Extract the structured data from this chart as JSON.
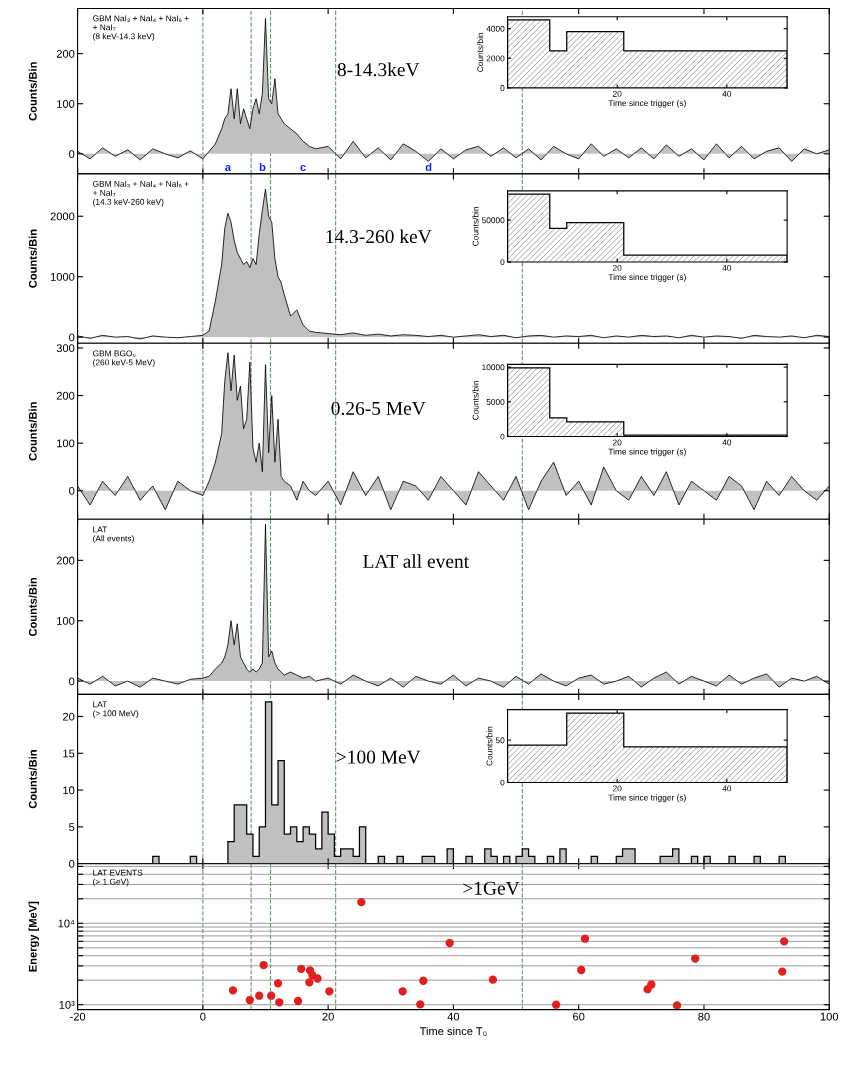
{
  "chart_data": [
    {
      "type": "area",
      "ylabel": "Counts/Bin",
      "annotations": [
        "GBM NaI₃ + NaI₄ + NaI₆ +\n+ NaI₇\n(8 keV-14.3 keV)",
        "8-14.3keV",
        "a",
        "b",
        "c",
        "d"
      ],
      "x": [
        -20,
        -18,
        -16,
        -14,
        -12,
        -10,
        -8,
        -6,
        -4,
        -2,
        0,
        1,
        2,
        3,
        3.5,
        4,
        4.5,
        5,
        5.5,
        6,
        6.5,
        7,
        7.5,
        8,
        8.5,
        9,
        9.5,
        10,
        10.5,
        11,
        11.5,
        12,
        12.5,
        13,
        14,
        15,
        16,
        17,
        18,
        20,
        22,
        24,
        26,
        28,
        30,
        32,
        34,
        36,
        38,
        40,
        42,
        44,
        46,
        48,
        50,
        52,
        54,
        56,
        58,
        60,
        62,
        64,
        66,
        68,
        70,
        72,
        74,
        76,
        78,
        80,
        82,
        84,
        86,
        88,
        90,
        92,
        94,
        96,
        98,
        100
      ],
      "series": [
        {
          "color": "#c0c0c0",
          "values": [
            5,
            -10,
            12,
            -5,
            8,
            -12,
            10,
            0,
            -8,
            6,
            -10,
            5,
            20,
            50,
            70,
            80,
            130,
            70,
            130,
            60,
            90,
            70,
            50,
            90,
            110,
            80,
            120,
            270,
            110,
            100,
            150,
            80,
            70,
            60,
            50,
            40,
            25,
            15,
            10,
            15,
            -10,
            25,
            -8,
            12,
            -12,
            20,
            5,
            -15,
            10,
            -10,
            8,
            15,
            -5,
            12,
            -8,
            10,
            -12,
            15,
            0,
            -10,
            20,
            -5,
            10,
            -8,
            12,
            -10,
            18,
            -5,
            10,
            -12,
            20,
            -8,
            15,
            -10,
            5,
            12,
            -15,
            10,
            0,
            8
          ]
        }
      ],
      "xlim": [
        -20,
        100
      ],
      "xticks": [
        -20,
        0,
        20,
        40,
        60,
        80,
        100
      ],
      "ylim": [
        -40,
        290
      ],
      "yticks": [
        0,
        100,
        200
      ],
      "tick_labels": "y",
      "ref_lines": [
        {
          "axis": "x",
          "value": 0,
          "color": "#5f9a5f",
          "line_style": "dashed"
        },
        {
          "axis": "x",
          "value": 7.7,
          "color": "#5f9a5f",
          "line_style": "dashed"
        },
        {
          "axis": "x",
          "value": 10.8,
          "color": "#5f9a5f",
          "line_style": "dashed"
        },
        {
          "axis": "x",
          "value": 21.2,
          "color": "#5f9a5f",
          "line_style": "dashed"
        },
        {
          "axis": "x",
          "value": 51,
          "color": "#5f9a5f",
          "line_style": "dashed"
        }
      ]
    },
    {
      "type": "histogram",
      "xlabel": "Time since trigger (s)",
      "ylabel": "Counts/bin",
      "bins": [
        0,
        7.7,
        10.8,
        21.2,
        51
      ],
      "values": [
        4600,
        2500,
        3800,
        2500
      ],
      "color": "#808080",
      "xlim": [
        0,
        51
      ],
      "xticks": [
        20,
        40
      ],
      "ylim": [
        0,
        4800
      ],
      "yticks": [
        0,
        2000,
        4000
      ]
    },
    {
      "type": "area",
      "ylabel": "Counts/Bin",
      "annotations": [
        "GBM NaI₃ + NaI₄ + NaI₆ +\n+ NaI₇\n(14.3 keV-260 keV)",
        "14.3-260 keV"
      ],
      "x": [
        -20,
        -18,
        -16,
        -14,
        -12,
        -10,
        -8,
        -6,
        -4,
        -2,
        0,
        1,
        2,
        3,
        3.5,
        4,
        4.5,
        5,
        5.5,
        6,
        6.5,
        7,
        7.5,
        8,
        8.5,
        9,
        9.5,
        10,
        10.5,
        11,
        11.5,
        12,
        12.5,
        13,
        14,
        15,
        16,
        17,
        18,
        20,
        22,
        24,
        26,
        28,
        30,
        32,
        34,
        36,
        38,
        40,
        42,
        44,
        46,
        48,
        50,
        52,
        54,
        56,
        58,
        60,
        62,
        64,
        66,
        68,
        70,
        72,
        74,
        76,
        78,
        80,
        82,
        84,
        86,
        88,
        90,
        92,
        94,
        96,
        98,
        100
      ],
      "series": [
        {
          "color": "#c0c0c0",
          "values": [
            20,
            -20,
            30,
            0,
            10,
            -30,
            20,
            0,
            -10,
            10,
            30,
            100,
            600,
            1200,
            1800,
            2050,
            1900,
            1600,
            1400,
            1300,
            1200,
            1250,
            1150,
            1300,
            1200,
            1700,
            2100,
            2450,
            2000,
            1900,
            1300,
            1000,
            900,
            700,
            350,
            450,
            200,
            100,
            80,
            60,
            40,
            70,
            30,
            50,
            20,
            40,
            30,
            10,
            30,
            0,
            20,
            40,
            10,
            30,
            -10,
            20,
            30,
            0,
            20,
            10,
            30,
            -10,
            20,
            0,
            30,
            10,
            20,
            -10,
            30,
            0,
            20,
            10,
            -20,
            30,
            10,
            0,
            20,
            -10,
            30,
            10
          ]
        }
      ],
      "xlim": [
        -20,
        100
      ],
      "xticks": [
        -20,
        0,
        20,
        40,
        60,
        80,
        100
      ],
      "ylim": [
        -100,
        2700
      ],
      "yticks": [
        0,
        1000,
        2000
      ],
      "tick_labels": "y",
      "ref_lines": [
        {
          "axis": "x",
          "value": 0,
          "color": "#5f9a5f",
          "line_style": "dashed"
        },
        {
          "axis": "x",
          "value": 7.7,
          "color": "#5f9a5f",
          "line_style": "dashed"
        },
        {
          "axis": "x",
          "value": 10.8,
          "color": "#5f9a5f",
          "line_style": "dashed"
        },
        {
          "axis": "x",
          "value": 21.2,
          "color": "#5f9a5f",
          "line_style": "dashed"
        },
        {
          "axis": "x",
          "value": 51,
          "color": "#5f9a5f",
          "line_style": "dashed"
        }
      ]
    },
    {
      "type": "histogram",
      "xlabel": "Time since trigger (s)",
      "ylabel": "Counts/bin",
      "bins": [
        0,
        7.7,
        10.8,
        21.2,
        51
      ],
      "values": [
        81000,
        40000,
        47000,
        8000
      ],
      "color": "#808080",
      "xlim": [
        0,
        51
      ],
      "xticks": [
        20,
        40
      ],
      "ylim": [
        0,
        85000
      ],
      "yticks": [
        0,
        50000
      ]
    },
    {
      "type": "area",
      "ylabel": "Counts/Bin",
      "annotations": [
        "GBM BGO₀\n(260 keV-5 MeV)",
        "0.26-5 MeV"
      ],
      "x": [
        -20,
        -18,
        -16,
        -14,
        -12,
        -10,
        -8,
        -6,
        -4,
        -2,
        0,
        1,
        2,
        3,
        3.5,
        4,
        4.5,
        5,
        5.5,
        6,
        6.5,
        7,
        7.5,
        8,
        8.5,
        9,
        9.5,
        10,
        10.5,
        11,
        11.5,
        12,
        12.5,
        13,
        14,
        15,
        16,
        17,
        18,
        20,
        22,
        24,
        26,
        28,
        30,
        32,
        34,
        36,
        38,
        40,
        42,
        44,
        46,
        48,
        50,
        52,
        54,
        56,
        58,
        60,
        62,
        64,
        66,
        68,
        70,
        72,
        74,
        76,
        78,
        80,
        82,
        84,
        86,
        88,
        90,
        92,
        94,
        96,
        98,
        100
      ],
      "series": [
        {
          "color": "#c0c0c0",
          "values": [
            10,
            -30,
            20,
            -10,
            30,
            -20,
            10,
            -40,
            20,
            0,
            -10,
            20,
            60,
            120,
            230,
            290,
            210,
            285,
            190,
            220,
            130,
            150,
            270,
            90,
            60,
            100,
            40,
            265,
            80,
            200,
            60,
            150,
            30,
            20,
            10,
            -20,
            20,
            0,
            -10,
            20,
            -30,
            40,
            -10,
            30,
            -40,
            20,
            10,
            -20,
            30,
            0,
            -30,
            40,
            10,
            -20,
            30,
            -40,
            20,
            60,
            -10,
            20,
            -30,
            50,
            0,
            -20,
            30,
            -10,
            40,
            -30,
            20,
            0,
            -20,
            30,
            10,
            -40,
            20,
            -10,
            30,
            0,
            -20,
            10
          ]
        }
      ],
      "xlim": [
        -20,
        100
      ],
      "xticks": [
        -20,
        0,
        20,
        40,
        60,
        80,
        100
      ],
      "ylim": [
        -60,
        310
      ],
      "yticks": [
        0,
        100,
        200,
        300
      ],
      "tick_labels": "y",
      "ref_lines": [
        {
          "axis": "x",
          "value": 0,
          "color": "#5f9a5f",
          "line_style": "dashed"
        },
        {
          "axis": "x",
          "value": 7.7,
          "color": "#5f9a5f",
          "line_style": "dashed"
        },
        {
          "axis": "x",
          "value": 10.8,
          "color": "#5f9a5f",
          "line_style": "dashed"
        },
        {
          "axis": "x",
          "value": 21.2,
          "color": "#5f9a5f",
          "line_style": "dashed"
        },
        {
          "axis": "x",
          "value": 51,
          "color": "#5f9a5f",
          "line_style": "dashed"
        }
      ]
    },
    {
      "type": "histogram",
      "xlabel": "Time since trigger (s)",
      "ylabel": "Counts/bin",
      "bins": [
        0,
        7.7,
        10.8,
        21.2,
        51
      ],
      "values": [
        9900,
        2700,
        2100,
        200
      ],
      "color": "#808080",
      "xlim": [
        0,
        51
      ],
      "xticks": [
        20,
        40
      ],
      "ylim": [
        0,
        10400
      ],
      "yticks": [
        0,
        5000,
        10000
      ]
    },
    {
      "type": "area",
      "ylabel": "Counts/Bin",
      "annotations": [
        "LAT\n(All events)",
        "LAT all event"
      ],
      "x": [
        -20,
        -18,
        -16,
        -14,
        -12,
        -10,
        -8,
        -6,
        -4,
        -2,
        0,
        1,
        2,
        3,
        3.5,
        4,
        4.5,
        5,
        5.5,
        6,
        6.5,
        7,
        7.5,
        8,
        8.5,
        9,
        9.5,
        10,
        10.5,
        11,
        11.5,
        12,
        12.5,
        13,
        14,
        15,
        16,
        17,
        18,
        20,
        22,
        24,
        26,
        28,
        30,
        32,
        34,
        36,
        38,
        40,
        42,
        44,
        46,
        48,
        50,
        52,
        54,
        56,
        58,
        60,
        62,
        64,
        66,
        68,
        70,
        72,
        74,
        76,
        78,
        80,
        82,
        84,
        86,
        88,
        90,
        92,
        94,
        96,
        98,
        100
      ],
      "series": [
        {
          "color": "#c0c0c0",
          "values": [
            5,
            -5,
            8,
            -8,
            0,
            -10,
            5,
            0,
            -5,
            3,
            5,
            8,
            20,
            30,
            40,
            60,
            100,
            60,
            95,
            40,
            30,
            20,
            15,
            20,
            15,
            20,
            30,
            260,
            40,
            50,
            30,
            20,
            15,
            10,
            15,
            10,
            5,
            8,
            0,
            5,
            -5,
            10,
            0,
            -8,
            5,
            -10,
            8,
            0,
            -5,
            10,
            -8,
            5,
            0,
            -10,
            8,
            -5,
            12,
            0,
            -8,
            5,
            10,
            -5,
            0,
            8,
            -10,
            5,
            15,
            -5,
            8,
            0,
            -8,
            10,
            -5,
            5,
            12,
            -10,
            5,
            0,
            8,
            -5
          ]
        }
      ],
      "xlim": [
        -20,
        100
      ],
      "xticks": [
        -20,
        0,
        20,
        40,
        60,
        80,
        100
      ],
      "ylim": [
        -22,
        268
      ],
      "yticks": [
        0,
        100,
        200
      ],
      "tick_labels": "y",
      "ref_lines": [
        {
          "axis": "x",
          "value": 0,
          "color": "#5f9a5f",
          "line_style": "dashed"
        },
        {
          "axis": "x",
          "value": 7.7,
          "color": "#5f9a5f",
          "line_style": "dashed"
        },
        {
          "axis": "x",
          "value": 10.8,
          "color": "#5f9a5f",
          "line_style": "dashed"
        },
        {
          "axis": "x",
          "value": 21.2,
          "color": "#5f9a5f",
          "line_style": "dashed"
        },
        {
          "axis": "x",
          "value": 51,
          "color": "#5f9a5f",
          "line_style": "dashed"
        }
      ]
    },
    {
      "type": "histogram",
      "ylabel": "Counts/Bin",
      "annotations": [
        "LAT\n(> 100 MeV)",
        ">100 MeV"
      ],
      "bins": [
        -20,
        -8,
        -7,
        -2,
        -1,
        4,
        5,
        6,
        7,
        8,
        9,
        10,
        11,
        12,
        13,
        14,
        15,
        16,
        17,
        18,
        19,
        20,
        21,
        22,
        23,
        24,
        25,
        26,
        27,
        28,
        29,
        31,
        32,
        35,
        36,
        37,
        39,
        40,
        42,
        43,
        45,
        46,
        47,
        48,
        49,
        50,
        51,
        52,
        53,
        55,
        56,
        57,
        58,
        62,
        63,
        66,
        67,
        68,
        69,
        73,
        74,
        75,
        76,
        78,
        79,
        80,
        81,
        84,
        85,
        88,
        89,
        92,
        93,
        100
      ],
      "values": [
        0,
        1,
        0,
        1,
        0,
        3,
        8,
        8,
        4,
        1,
        5,
        22,
        8,
        14,
        4,
        5,
        3,
        5,
        4,
        2,
        7,
        4,
        1,
        2,
        2,
        1,
        5,
        0,
        0,
        1,
        0,
        1,
        0,
        1,
        1,
        0,
        2,
        0,
        1,
        0,
        2,
        1,
        0,
        1,
        0,
        1,
        2,
        1,
        0,
        1,
        0,
        2,
        0,
        1,
        0,
        1,
        2,
        2,
        0,
        1,
        1,
        2,
        0,
        1,
        0,
        1,
        0,
        1,
        0,
        1,
        0,
        1,
        0
      ],
      "color": "#c0c0c0",
      "xlim": [
        -20,
        100
      ],
      "xticks": [
        -20,
        0,
        20,
        40,
        60,
        80,
        100
      ],
      "ylim": [
        0,
        23
      ],
      "yticks": [
        0,
        5,
        10,
        15,
        20
      ],
      "tick_labels": "y",
      "ref_lines": [
        {
          "axis": "x",
          "value": 0,
          "color": "#5f9a5f",
          "line_style": "dashed"
        },
        {
          "axis": "x",
          "value": 7.7,
          "color": "#5f9a5f",
          "line_style": "dashed"
        },
        {
          "axis": "x",
          "value": 10.8,
          "color": "#5f9a5f",
          "line_style": "dashed"
        },
        {
          "axis": "x",
          "value": 21.2,
          "color": "#5f9a5f",
          "line_style": "dashed"
        },
        {
          "axis": "x",
          "value": 51,
          "color": "#5f9a5f",
          "line_style": "dashed"
        }
      ]
    },
    {
      "type": "histogram",
      "xlabel": "Time since trigger (s)",
      "ylabel": "Counts/bin",
      "bins": [
        0,
        10.8,
        21.2,
        51
      ],
      "values": [
        44,
        82,
        42
      ],
      "color": "#808080",
      "xlim": [
        0,
        51
      ],
      "xticks": [
        20,
        40
      ],
      "ylim": [
        0,
        86
      ],
      "yticks": [
        0,
        50
      ]
    },
    {
      "type": "scatter",
      "xlabel": "Time since T₀",
      "ylabel": "Energy [MeV]",
      "annotations": [
        "LAT EVENTS\n(> 1 GeV)",
        ">1GeV"
      ],
      "x": [
        4.8,
        7.5,
        9.0,
        9.7,
        10.9,
        12.0,
        12.2,
        15.2,
        15.7,
        17.0,
        17.1,
        17.5,
        18.3,
        20.2,
        25.3,
        31.9,
        34.7,
        35.2,
        39.4,
        46.3,
        56.4,
        60.4,
        61.0,
        71.0,
        71.6,
        75.7,
        78.6,
        92.8,
        92.5
      ],
      "values": [
        1500,
        1140,
        1290,
        3070,
        1290,
        1830,
        1070,
        1110,
        2760,
        1880,
        2640,
        2290,
        2100,
        1460,
        18200,
        1460,
        1010,
        1970,
        5720,
        2030,
        1000,
        2670,
        6470,
        1550,
        1770,
        980,
        3690,
        6000,
        2550
      ],
      "color": "#e02020",
      "marker": "circle",
      "log": "y",
      "grid": "y",
      "xlim": [
        -20,
        100
      ],
      "xticks": [
        -20,
        0,
        20,
        40,
        60,
        80,
        100
      ],
      "ylim": [
        870,
        54000
      ],
      "yticks": [
        {
          "value": 1000,
          "label": "10³"
        },
        {
          "value": 2000,
          "label": null
        },
        {
          "value": 3000,
          "label": null
        },
        {
          "value": 4000,
          "label": null
        },
        {
          "value": 5000,
          "label": null
        },
        {
          "value": 6000,
          "label": null
        },
        {
          "value": 7000,
          "label": null
        },
        {
          "value": 8000,
          "label": null
        },
        {
          "value": 9000,
          "label": null
        },
        {
          "value": 10000,
          "label": "10⁴"
        },
        {
          "value": 20000,
          "label": null
        },
        {
          "value": 30000,
          "label": null
        },
        {
          "value": 40000,
          "label": null
        },
        {
          "value": 50000,
          "label": null
        }
      ],
      "ref_lines": [
        {
          "axis": "x",
          "value": 0,
          "color": "#5f9a5f",
          "line_style": "dashed"
        },
        {
          "axis": "x",
          "value": 7.7,
          "color": "#5f9a5f",
          "line_style": "dashed"
        },
        {
          "axis": "x",
          "value": 10.8,
          "color": "#5f9a5f",
          "line_style": "dashed"
        },
        {
          "axis": "x",
          "value": 21.2,
          "color": "#5f9a5f",
          "line_style": "dashed"
        },
        {
          "axis": "x",
          "value": 51,
          "color": "#5f9a5f",
          "line_style": "dashed"
        }
      ]
    }
  ]
}
